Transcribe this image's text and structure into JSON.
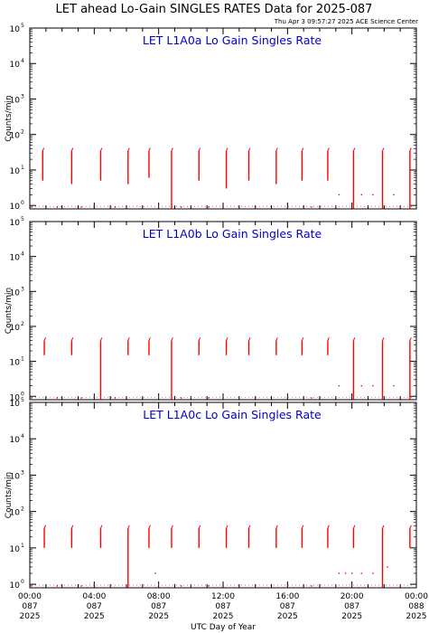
{
  "page": {
    "title": "LET ahead Lo-Gain SINGLES RATES Data for 2025-087",
    "timestamp": "Thu Apr  3 09:57:27 2025 ACE Science Center"
  },
  "chart_data": {
    "type": "line",
    "xlabel": "UTC Day of Year",
    "ylabel": "Counts/min",
    "yscale": "log",
    "ylim": [
      0.8,
      100000
    ],
    "xlim_hours": [
      0,
      24
    ],
    "xticks": [
      {
        "time": "00:00",
        "doy": "087",
        "year": "2025"
      },
      {
        "time": "04:00",
        "doy": "087",
        "year": "2025"
      },
      {
        "time": "08:00",
        "doy": "087",
        "year": "2025"
      },
      {
        "time": "12:00",
        "doy": "087",
        "year": "2025"
      },
      {
        "time": "16:00",
        "doy": "087",
        "year": "2025"
      },
      {
        "time": "20:00",
        "doy": "087",
        "year": "2025"
      },
      {
        "time": "00:00",
        "doy": "088",
        "year": "2025"
      }
    ],
    "yticks": [
      {
        "base": "10",
        "exp": "0"
      },
      {
        "base": "10",
        "exp": "1"
      },
      {
        "base": "10",
        "exp": "2"
      },
      {
        "base": "10",
        "exp": "3"
      },
      {
        "base": "10",
        "exp": "4"
      },
      {
        "base": "10",
        "exp": "5"
      }
    ],
    "series_color": "#ff0000",
    "panels": [
      {
        "title": "LET L1A0a Lo Gain Singles Rate",
        "bursts": [
          [
            0.8,
            5,
            35
          ],
          [
            2.6,
            4,
            35
          ],
          [
            4.4,
            5,
            35
          ],
          [
            6.1,
            4,
            35
          ],
          [
            7.4,
            6,
            35
          ],
          [
            8.8,
            0.8,
            35
          ],
          [
            10.5,
            5,
            35
          ],
          [
            12.2,
            3,
            35
          ],
          [
            13.6,
            5,
            35
          ],
          [
            15.3,
            4,
            35
          ],
          [
            16.9,
            5,
            35
          ],
          [
            18.5,
            5,
            35
          ],
          [
            20.1,
            0.8,
            35
          ],
          [
            21.9,
            0.8,
            35
          ],
          [
            23.6,
            0.8,
            35
          ]
        ],
        "floor_points": [
          [
            1.7,
            0.9
          ],
          [
            3.2,
            0.9
          ],
          [
            5.3,
            0.9
          ],
          [
            9.4,
            0.9
          ],
          [
            11.1,
            0.9
          ],
          [
            14.0,
            0.9
          ],
          [
            17.5,
            0.9
          ],
          [
            19.2,
            2
          ],
          [
            20.6,
            2
          ],
          [
            21.3,
            2
          ],
          [
            22.6,
            2
          ],
          [
            23.0,
            0.9
          ]
        ]
      },
      {
        "title": "LET L1A0b Lo Gain Singles Rate",
        "bursts": [
          [
            0.9,
            15,
            40
          ],
          [
            2.6,
            15,
            40
          ],
          [
            4.4,
            0.8,
            40
          ],
          [
            6.1,
            15,
            40
          ],
          [
            7.4,
            15,
            40
          ],
          [
            8.8,
            0.8,
            40
          ],
          [
            10.5,
            15,
            40
          ],
          [
            12.2,
            15,
            40
          ],
          [
            13.6,
            15,
            40
          ],
          [
            15.3,
            15,
            40
          ],
          [
            16.9,
            15,
            40
          ],
          [
            18.5,
            15,
            40
          ],
          [
            20.1,
            0.8,
            40
          ],
          [
            21.9,
            0.8,
            40
          ],
          [
            23.6,
            0.8,
            40
          ]
        ],
        "floor_points": [
          [
            1.7,
            0.9
          ],
          [
            3.2,
            0.9
          ],
          [
            5.3,
            0.9
          ],
          [
            9.4,
            0.9
          ],
          [
            11.1,
            0.9
          ],
          [
            14.0,
            0.9
          ],
          [
            17.5,
            0.9
          ],
          [
            19.2,
            2
          ],
          [
            20.6,
            2
          ],
          [
            21.3,
            2
          ],
          [
            22.6,
            2
          ],
          [
            23.0,
            0.9
          ]
        ]
      },
      {
        "title": "LET L1A0c Lo Gain Singles Rate",
        "bursts": [
          [
            0.9,
            10,
            35
          ],
          [
            2.6,
            10,
            35
          ],
          [
            4.4,
            10,
            35
          ],
          [
            6.1,
            0.8,
            35
          ],
          [
            7.4,
            10,
            35
          ],
          [
            8.8,
            10,
            35
          ],
          [
            10.5,
            10,
            35
          ],
          [
            12.2,
            10,
            35
          ],
          [
            13.6,
            10,
            35
          ],
          [
            15.3,
            10,
            35
          ],
          [
            16.9,
            10,
            35
          ],
          [
            18.5,
            10,
            35
          ],
          [
            20.1,
            10,
            35
          ],
          [
            21.9,
            0.8,
            35
          ],
          [
            23.6,
            10,
            35
          ]
        ],
        "floor_points": [
          [
            1.7,
            0.9
          ],
          [
            3.2,
            0.9
          ],
          [
            7.8,
            2
          ],
          [
            9.4,
            0.9
          ],
          [
            11.1,
            0.9
          ],
          [
            14.0,
            0.9
          ],
          [
            17.5,
            0.9
          ],
          [
            19.2,
            2
          ],
          [
            19.6,
            2
          ],
          [
            20.0,
            2
          ],
          [
            20.6,
            2
          ],
          [
            21.3,
            2
          ],
          [
            22.2,
            3
          ]
        ]
      }
    ]
  }
}
